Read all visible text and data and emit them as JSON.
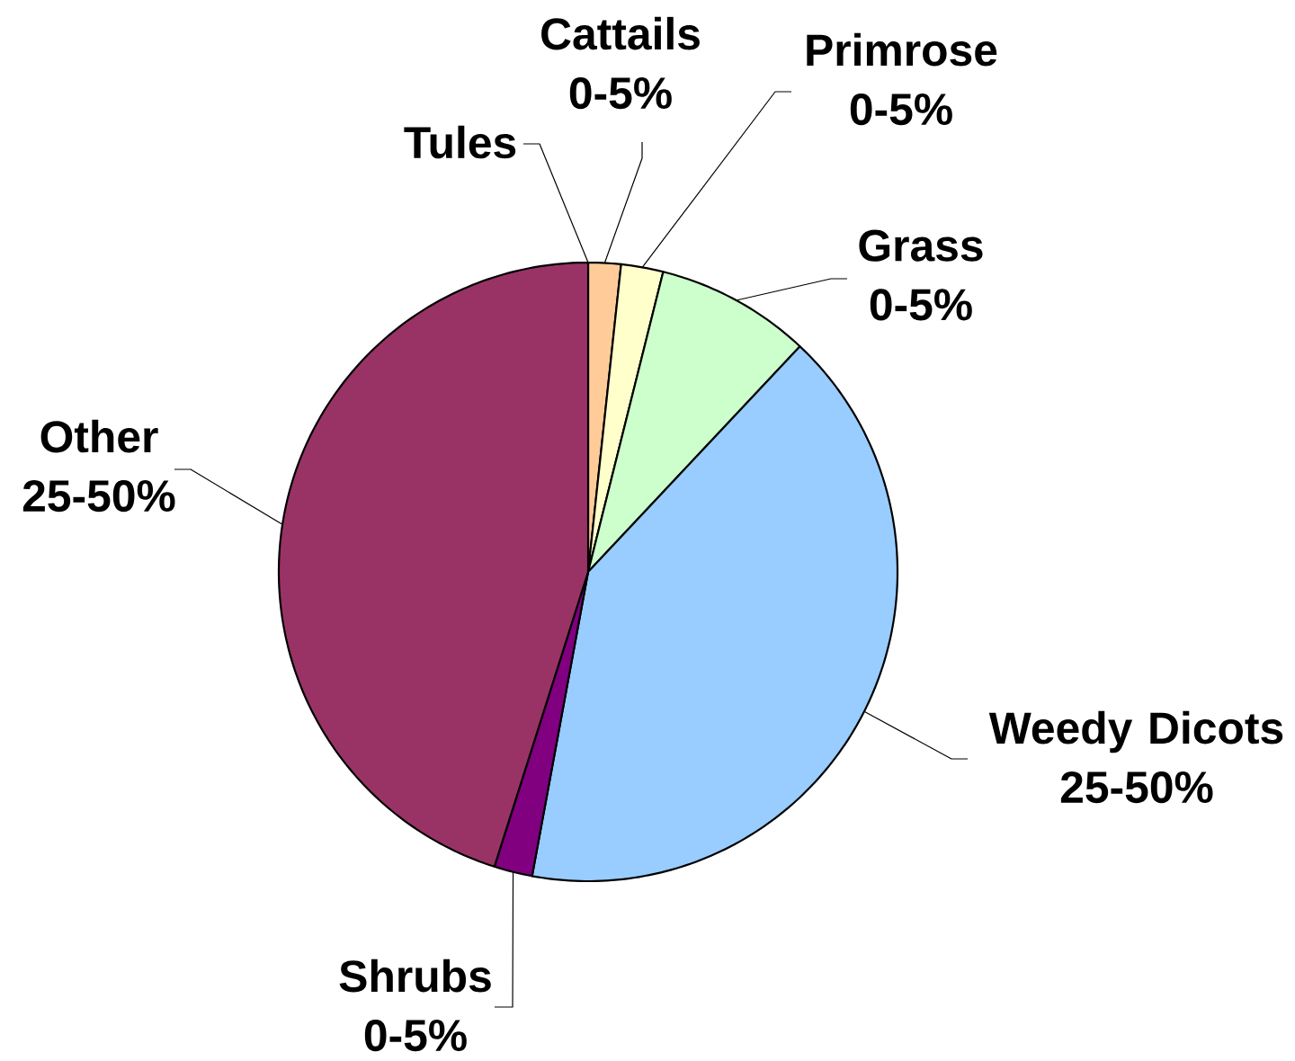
{
  "chart_data": {
    "type": "pie",
    "categories": [
      "Tules",
      "Cattails 0-5%",
      "Primrose 0-5%",
      "Grass 0-5%",
      "Weedy Dicots 25-50%",
      "Shrubs 0-5%",
      "Other 25-50%"
    ],
    "values": [
      0,
      1.7,
      2.2,
      8.1,
      40.9,
      2.0,
      45.1
    ],
    "colors": [
      null,
      "#ffcc99",
      "#ffffcc",
      "#ccffcc",
      "#99ccff",
      "#800080",
      "#993366"
    ]
  }
}
